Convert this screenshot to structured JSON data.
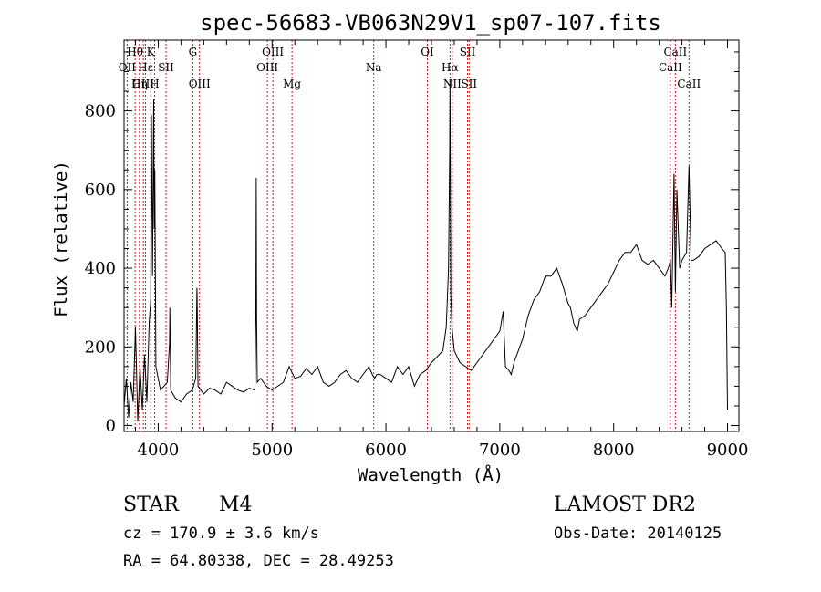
{
  "title": "spec-56683-VB063N29V1_sp07-107.fits",
  "info": {
    "class_label": "STAR",
    "subclass_label": "M4",
    "survey": "LAMOST DR2",
    "cz": "cz = 170.9 ± 3.6 km/s",
    "obs_date": "Obs-Date: 20140125",
    "radec": "RA =  64.80338, DEC =  28.49253"
  },
  "chart_data": {
    "type": "line",
    "xlabel": "Wavelength (Å)",
    "ylabel": "Flux (relative)",
    "xlim": [
      3700,
      9100
    ],
    "ylim": [
      -15,
      980
    ],
    "xticks": [
      4000,
      5000,
      6000,
      7000,
      8000,
      9000
    ],
    "yticks": [
      0,
      200,
      400,
      600,
      800
    ],
    "series": [
      {
        "x": [
          3700,
          3720,
          3740,
          3760,
          3780,
          3800,
          3820,
          3840,
          3860,
          3880,
          3900,
          3920,
          3935,
          3940,
          3950,
          3960,
          3965,
          3970,
          3980,
          4000,
          4020,
          4050,
          4080,
          4100,
          4102,
          4110,
          4150,
          4200,
          4250,
          4300,
          4330,
          4340,
          4342,
          4350,
          4400,
          4450,
          4500,
          4550,
          4600,
          4650,
          4700,
          4750,
          4800,
          4850,
          4858,
          4861,
          4864,
          4870,
          4900,
          4950,
          5000,
          5050,
          5100,
          5150,
          5200,
          5250,
          5300,
          5350,
          5400,
          5450,
          5500,
          5550,
          5600,
          5650,
          5700,
          5750,
          5800,
          5850,
          5880,
          5900,
          5920,
          5950,
          6000,
          6050,
          6100,
          6150,
          6200,
          6250,
          6300,
          6350,
          6400,
          6450,
          6500,
          6530,
          6550,
          6560,
          6563,
          6566,
          6570,
          6580,
          6600,
          6650,
          6700,
          6750,
          6800,
          6850,
          6900,
          6950,
          7000,
          7030,
          7050,
          7080,
          7100,
          7130,
          7150,
          7200,
          7250,
          7300,
          7350,
          7400,
          7450,
          7500,
          7550,
          7580,
          7600,
          7620,
          7650,
          7680,
          7700,
          7750,
          7800,
          7850,
          7900,
          7950,
          8000,
          8050,
          8100,
          8150,
          8200,
          8250,
          8300,
          8350,
          8400,
          8450,
          8480,
          8498,
          8510,
          8530,
          8542,
          8555,
          8580,
          8600,
          8640,
          8662,
          8680,
          8700,
          8750,
          8800,
          8850,
          8900,
          8950,
          8980,
          8990,
          9000
        ],
        "y": [
          50,
          120,
          20,
          110,
          60,
          250,
          10,
          150,
          40,
          180,
          60,
          260,
          320,
          790,
          380,
          830,
          500,
          650,
          150,
          120,
          90,
          100,
          110,
          210,
          300,
          90,
          70,
          60,
          80,
          90,
          120,
          350,
          330,
          100,
          80,
          95,
          90,
          80,
          110,
          100,
          90,
          85,
          95,
          90,
          300,
          630,
          280,
          110,
          120,
          100,
          90,
          100,
          110,
          150,
          120,
          125,
          145,
          130,
          150,
          110,
          100,
          110,
          130,
          140,
          120,
          110,
          130,
          150,
          130,
          120,
          130,
          130,
          120,
          110,
          150,
          130,
          150,
          100,
          130,
          140,
          160,
          175,
          190,
          250,
          400,
          700,
          880,
          650,
          330,
          250,
          190,
          160,
          150,
          140,
          160,
          180,
          200,
          220,
          240,
          290,
          150,
          140,
          130,
          165,
          180,
          220,
          280,
          320,
          340,
          380,
          380,
          400,
          360,
          330,
          310,
          300,
          260,
          240,
          270,
          280,
          300,
          320,
          340,
          360,
          390,
          420,
          440,
          440,
          460,
          420,
          410,
          420,
          400,
          380,
          400,
          420,
          300,
          640,
          340,
          600,
          400,
          420,
          440,
          660,
          420,
          420,
          430,
          450,
          460,
          470,
          450,
          440,
          300,
          40
        ]
      }
    ],
    "line_markers": [
      {
        "label": "Hθ",
        "x": 3797,
        "row": 1
      },
      {
        "label": "K",
        "x": 3934,
        "row": 1
      },
      {
        "label": "G",
        "x": 4304,
        "row": 1
      },
      {
        "label": "OIII",
        "x": 5007,
        "row": 1
      },
      {
        "label": "OI",
        "x": 6364,
        "row": 1
      },
      {
        "label": "SII",
        "x": 6717,
        "row": 1
      },
      {
        "label": "CaII",
        "x": 8542,
        "row": 1
      },
      {
        "label": "OII",
        "x": 3727,
        "row": 2
      },
      {
        "label": "Hε",
        "x": 3889,
        "row": 2
      },
      {
        "label": "SII",
        "x": 4069,
        "row": 2
      },
      {
        "label": "OIII",
        "x": 4959,
        "row": 2
      },
      {
        "label": "Na",
        "x": 5893,
        "row": 2
      },
      {
        "label": "Hα",
        "x": 6563,
        "row": 2
      },
      {
        "label": "CaII",
        "x": 8498,
        "row": 2
      },
      {
        "label": "OIII",
        "x": 3869,
        "row": 3
      },
      {
        "label": "Hη",
        "x": 3835,
        "row": 3
      },
      {
        "label": "H",
        "x": 3968,
        "row": 3
      },
      {
        "label": "OIII",
        "x": 4363,
        "row": 3
      },
      {
        "label": "Mg",
        "x": 5175,
        "row": 3
      },
      {
        "label": "NII",
        "x": 6583,
        "row": 3
      },
      {
        "label": "SII",
        "x": 6731,
        "row": 3
      },
      {
        "label": "CaII",
        "x": 8662,
        "row": 3
      }
    ]
  }
}
